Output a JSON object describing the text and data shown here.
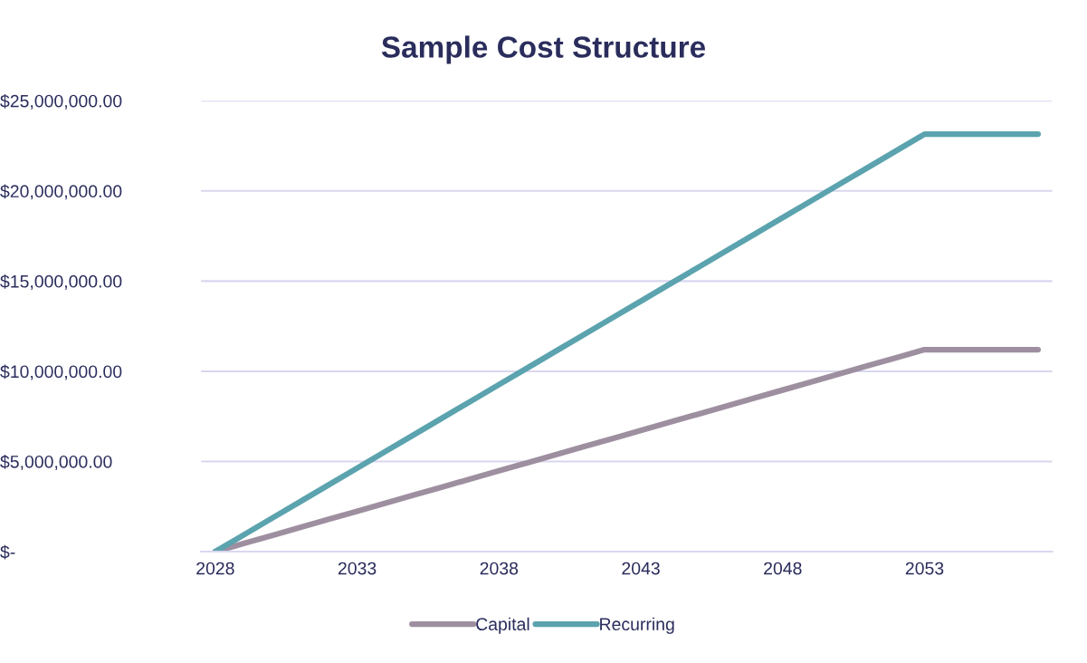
{
  "chart_data": {
    "type": "line",
    "title": "Sample Cost Structure",
    "categories": [
      "2028",
      null,
      null,
      null,
      null,
      "2033",
      null,
      null,
      null,
      null,
      "2038",
      null,
      null,
      null,
      null,
      "2043",
      null,
      null,
      null,
      null,
      "2048",
      null,
      null,
      null,
      null,
      "2053",
      null,
      null,
      null,
      null
    ],
    "series": [
      {
        "name": "Capital",
        "color": "#9e8fa0",
        "values": [
          0,
          448000,
          896000,
          1344000,
          1792000,
          2240000,
          2688000,
          3136000,
          3584000,
          4032000,
          4480000,
          4928000,
          5376000,
          5824000,
          6272000,
          6720000,
          7168000,
          7616000,
          8064000,
          8512000,
          8960000,
          9408000,
          9856000,
          10304000,
          10752000,
          11200000,
          11200000,
          11200000,
          11200000,
          11200000
        ]
      },
      {
        "name": "Recurring",
        "color": "#5ba3ae",
        "values": [
          0,
          926000,
          1852000,
          2778000,
          3704000,
          4630000,
          5556000,
          6482000,
          7408000,
          8334000,
          9260000,
          10186000,
          11112000,
          12038000,
          12964000,
          13890000,
          14816000,
          15742000,
          16668000,
          17594000,
          18520000,
          19446000,
          20372000,
          21298000,
          22224000,
          23150000,
          23150000,
          23150000,
          23150000,
          23150000
        ]
      }
    ],
    "ylim": [
      0,
      25000000
    ],
    "yticks": [
      {
        "value": 0,
        "label": "$-"
      },
      {
        "value": 5000000,
        "label": "$5,000,000.00"
      },
      {
        "value": 10000000,
        "label": "$10,000,000.00"
      },
      {
        "value": 15000000,
        "label": "$15,000,000.00"
      },
      {
        "value": 20000000,
        "label": "$20,000,000.00"
      },
      {
        "value": 25000000,
        "label": "$25,000,000.00"
      }
    ],
    "grid": "y",
    "legend": "bottom",
    "line_style": "solid"
  }
}
